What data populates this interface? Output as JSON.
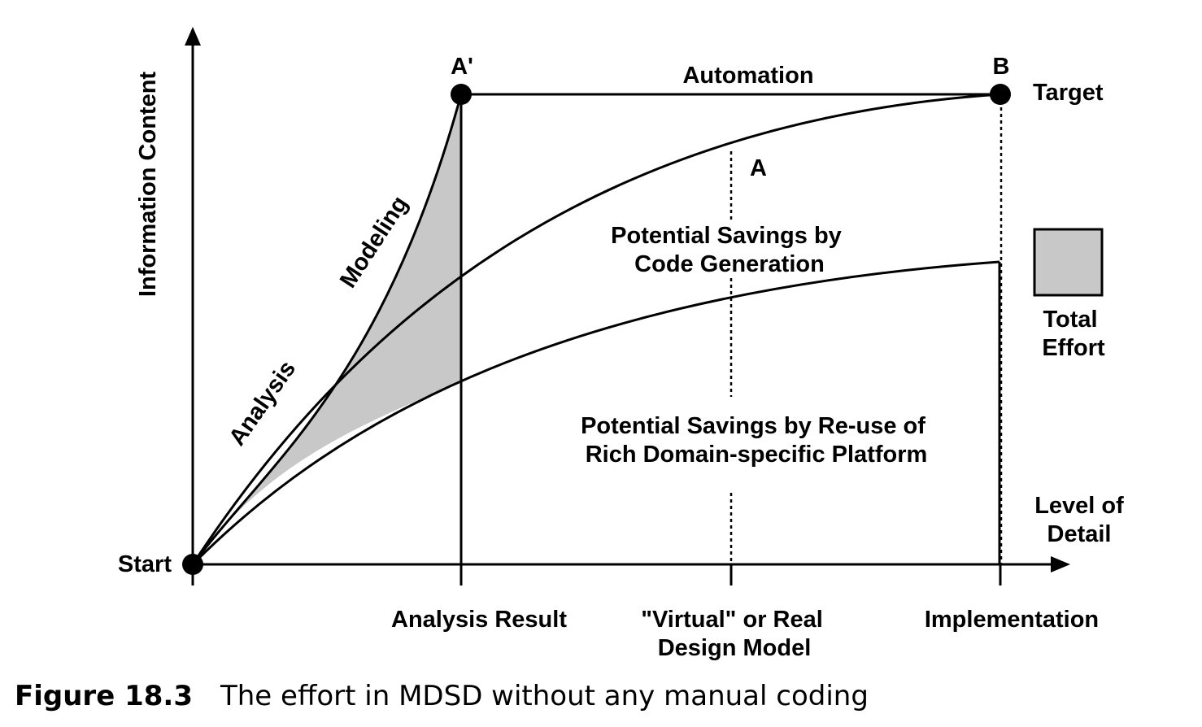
{
  "axes": {
    "y_label": "Information Content",
    "x_label_line1": "Level of",
    "x_label_line2": "Detail"
  },
  "points": {
    "start": "Start",
    "a_prime": "A'",
    "b": "B",
    "target": "Target",
    "a": "A"
  },
  "curve_labels": {
    "analysis": "Analysis",
    "modeling": "Modeling",
    "automation": "Automation"
  },
  "regions": {
    "code_gen_line1": "Potential Savings by",
    "code_gen_line2": "Code Generation",
    "reuse_line1": "Potential Savings by Re-use of",
    "reuse_line2": "Rich Domain-specific Platform"
  },
  "ticks": {
    "analysis_result": "Analysis Result",
    "design_line1": "\"Virtual\" or Real",
    "design_line2": "Design Model",
    "implementation": "Implementation"
  },
  "legend": {
    "line1": "Total",
    "line2": "Effort",
    "fill_color": "#c8c8c8"
  },
  "caption": {
    "number": "Figure 18.3",
    "text": "The effort in MDSD without any manual coding"
  }
}
